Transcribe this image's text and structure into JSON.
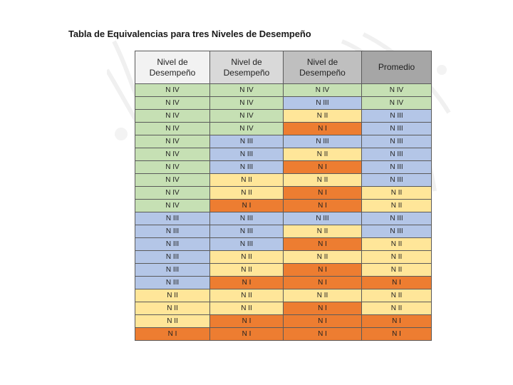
{
  "title": "Tabla de Equivalencias para tres Niveles de Desempeño",
  "table": {
    "headers": [
      {
        "line1": "Nivel de",
        "line2": "Desempeño"
      },
      {
        "line1": "Nivel de",
        "line2": "Desempeño"
      },
      {
        "line1": "Nivel de",
        "line2": "Desempeño"
      },
      {
        "line1": "Promedio",
        "line2": ""
      }
    ],
    "rows": [
      [
        "N IV",
        "N IV",
        "N IV",
        "N IV"
      ],
      [
        "N IV",
        "N IV",
        "N III",
        "N IV"
      ],
      [
        "N IV",
        "N IV",
        "N II",
        "N III"
      ],
      [
        "N IV",
        "N IV",
        "N I",
        "N III"
      ],
      [
        "N IV",
        "N III",
        "N III",
        "N III"
      ],
      [
        "N IV",
        "N III",
        "N II",
        "N III"
      ],
      [
        "N IV",
        "N III",
        "N I",
        "N III"
      ],
      [
        "N IV",
        "N II",
        "N II",
        "N III"
      ],
      [
        "N IV",
        "N II",
        "N I",
        "N II"
      ],
      [
        "N IV",
        "N I",
        "N I",
        "N II"
      ],
      [
        "N III",
        "N III",
        "N III",
        "N III"
      ],
      [
        "N III",
        "N III",
        "N II",
        "N III"
      ],
      [
        "N III",
        "N III",
        "N I",
        "N II"
      ],
      [
        "N III",
        "N II",
        "N II",
        "N II"
      ],
      [
        "N III",
        "N II",
        "N I",
        "N II"
      ],
      [
        "N III",
        "N I",
        "N I",
        "N I"
      ],
      [
        "N II",
        "N II",
        "N II",
        "N II"
      ],
      [
        "N II",
        "N II",
        "N I",
        "N II"
      ],
      [
        "N II",
        "N I",
        "N I",
        "N I"
      ],
      [
        "N I",
        "N I",
        "N I",
        "N I"
      ]
    ]
  },
  "colors": {
    "N IV": "#c6e0b4",
    "N III": "#b4c6e7",
    "N II": "#ffe699",
    "N I": "#ed7d31"
  }
}
